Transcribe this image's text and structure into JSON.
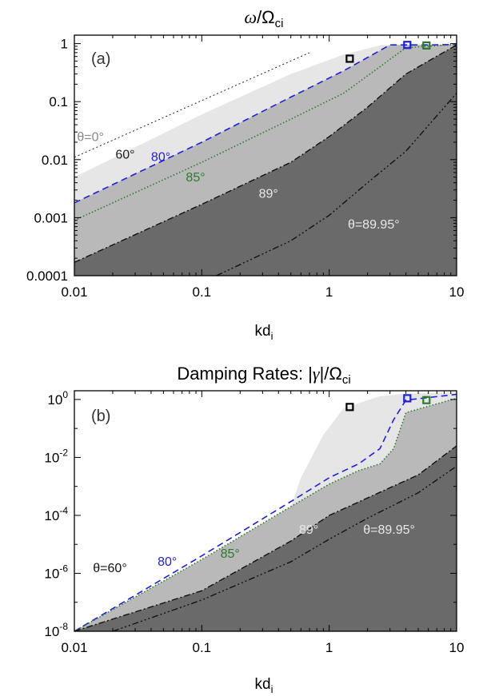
{
  "chart_data": [
    {
      "type": "area",
      "panel_label": "(a)",
      "title_symbol": "ω",
      "title_rest": "/Ω",
      "title_sub": "ci",
      "xlabel_main": "kd",
      "xlabel_sub": "i",
      "xscale": "log",
      "yscale": "log",
      "xlim": [
        0.01,
        10
      ],
      "ylim": [
        0.0001,
        1.4
      ],
      "xticks": [
        {
          "value": 0.01,
          "label": "0.01"
        },
        {
          "value": 0.1,
          "label": "0.1"
        },
        {
          "value": 1,
          "label": "1"
        },
        {
          "value": 10,
          "label": "10"
        }
      ],
      "yticks": [
        {
          "value": 1,
          "label": "1"
        },
        {
          "value": 0.1,
          "label": "0.1"
        },
        {
          "value": 0.01,
          "label": "0.01"
        },
        {
          "value": 0.001,
          "label": "0.001"
        },
        {
          "value": 0.0001,
          "label": "0.0001"
        }
      ],
      "regions": [
        {
          "fill": "#e6e6e6",
          "x": [
            0.01,
            0.1,
            0.5,
            1.3,
            2.6,
            10
          ],
          "y": [
            0.005,
            0.06,
            0.3,
            0.65,
            0.95,
            0.97
          ]
        },
        {
          "fill": "#b9b9b9",
          "x": [
            0.01,
            0.1,
            0.5,
            1.3,
            3.0,
            6.0,
            10
          ],
          "y": [
            0.0018,
            0.02,
            0.12,
            0.34,
            0.95,
            0.95,
            0.97
          ]
        },
        {
          "fill": "#6a6a6a",
          "x": [
            0.01,
            0.1,
            0.5,
            1.0,
            2.0,
            4.0,
            10
          ],
          "y": [
            0.00017,
            0.0017,
            0.009,
            0.025,
            0.08,
            0.3,
            0.95
          ]
        }
      ],
      "series": [
        {
          "color": "#222222",
          "dash": "2,3",
          "width": 1,
          "x": [
            0.01,
            0.7
          ],
          "y": [
            0.011,
            0.7
          ]
        },
        {
          "color": "#1f1fd6",
          "dash": "8,5",
          "width": 1.6,
          "x": [
            0.01,
            0.1,
            0.5,
            1.3,
            3.0,
            6.0,
            10
          ],
          "y": [
            0.0018,
            0.02,
            0.12,
            0.34,
            0.95,
            0.95,
            0.97
          ]
        },
        {
          "color": "#2e7a2e",
          "dash": "1.5,2.5",
          "width": 1.6,
          "x": [
            0.01,
            0.1,
            0.5,
            1.3,
            2.5,
            4.0,
            10
          ],
          "y": [
            0.0009,
            0.009,
            0.05,
            0.14,
            0.4,
            0.85,
            0.97
          ]
        },
        {
          "color": "#111111",
          "dash": "8,3,2,3",
          "width": 1.4,
          "x": [
            0.01,
            0.1,
            0.5,
            1.0,
            2.0,
            4.0,
            10
          ],
          "y": [
            0.00017,
            0.0017,
            0.009,
            0.025,
            0.08,
            0.3,
            0.95
          ]
        },
        {
          "color": "#111111",
          "dash": "8,3,2,3,2,3,2,3",
          "width": 1.4,
          "x": [
            0.13,
            0.5,
            1.0,
            2.0,
            4.0,
            10
          ],
          "y": [
            0.0001,
            0.0004,
            0.0011,
            0.004,
            0.014,
            0.14
          ]
        }
      ],
      "markers": [
        {
          "x": 1.45,
          "y": 0.55,
          "color": "#000000"
        },
        {
          "x": 4.1,
          "y": 0.95,
          "color": "#1f1fd6"
        },
        {
          "x": 5.8,
          "y": 0.93,
          "color": "#2e7a2e"
        }
      ],
      "annotations": [
        {
          "text": "θ=0°",
          "x": 0.0105,
          "y": 0.021,
          "color": "#888888"
        },
        {
          "text": "60°",
          "x": 0.021,
          "y": 0.0105,
          "color": "#222222"
        },
        {
          "text": "80°",
          "x": 0.04,
          "y": 0.0095,
          "color": "#1f1fd6"
        },
        {
          "text": "85°",
          "x": 0.075,
          "y": 0.0042,
          "color": "#2e7a2e"
        },
        {
          "text": "89°",
          "x": 0.28,
          "y": 0.0022,
          "color": "#e8e8e8"
        },
        {
          "text": "θ=89.95°",
          "x": 1.4,
          "y": 0.00065,
          "color": "#e8e8e8"
        }
      ]
    },
    {
      "type": "area",
      "panel_label": "(b)",
      "title_prefix": "Damping Rates: |",
      "title_symbol": "γ",
      "title_rest": "|/Ω",
      "title_sub": "ci",
      "xlabel_main": "kd",
      "xlabel_sub": "i",
      "xscale": "log",
      "yscale": "log",
      "xlim": [
        0.01,
        10
      ],
      "ylim": [
        1e-08,
        2
      ],
      "xticks": [
        {
          "value": 0.01,
          "label": "0.01"
        },
        {
          "value": 0.1,
          "label": "0.1"
        },
        {
          "value": 1,
          "label": "1"
        },
        {
          "value": 10,
          "label": "10"
        }
      ],
      "yticks": [
        {
          "value": 1,
          "base": "10",
          "exp": "0"
        },
        {
          "value": 0.01,
          "base": "10",
          "exp": "-2"
        },
        {
          "value": 0.0001,
          "base": "10",
          "exp": "-4"
        },
        {
          "value": 1e-06,
          "base": "10",
          "exp": "-6"
        },
        {
          "value": 1e-08,
          "base": "10",
          "exp": "-8"
        }
      ],
      "regions": [
        {
          "fill": "#e6e6e6",
          "x": [
            0.01,
            0.1,
            0.45,
            0.6,
            0.9,
            1.3,
            2.5,
            4.0,
            10
          ],
          "y": [
            1e-08,
            1e-06,
            5e-05,
            0.002,
            0.06,
            0.5,
            1.3,
            1.6,
            1.8
          ]
        },
        {
          "fill": "#b9b9b9",
          "x": [
            0.01,
            0.1,
            0.5,
            1.0,
            1.7,
            2.5,
            3.2,
            4.0,
            10
          ],
          "y": [
            1e-08,
            3e-06,
            0.0002,
            0.0012,
            0.0035,
            0.006,
            0.02,
            0.35,
            1.1
          ]
        },
        {
          "fill": "#6a6a6a",
          "x": [
            0.01,
            0.1,
            0.5,
            1.0,
            2.0,
            5.0,
            10
          ],
          "y": [
            1e-08,
            2.5e-07,
            1.3e-05,
            0.0001,
            0.0004,
            0.0025,
            0.025
          ]
        }
      ],
      "series": [
        {
          "color": "#1f1fd6",
          "dash": "8,5",
          "width": 1.6,
          "x": [
            0.01,
            0.1,
            0.5,
            1.0,
            1.7,
            2.5,
            3.2,
            4.0,
            10
          ],
          "y": [
            1e-08,
            4e-06,
            0.0003,
            0.002,
            0.006,
            0.02,
            0.2,
            0.95,
            1.5
          ]
        },
        {
          "color": "#2e7a2e",
          "dash": "1.5,2.5",
          "width": 1.6,
          "x": [
            0.01,
            0.1,
            0.5,
            1.0,
            1.7,
            2.5,
            3.2,
            4.0,
            10
          ],
          "y": [
            1e-08,
            3e-06,
            0.0002,
            0.0012,
            0.0035,
            0.006,
            0.02,
            0.35,
            1.1
          ]
        },
        {
          "color": "#111111",
          "dash": "8,3,2,3",
          "width": 1.4,
          "x": [
            0.01,
            0.1,
            0.5,
            1.0,
            2.0,
            5.0,
            10
          ],
          "y": [
            1e-08,
            2.5e-07,
            1.3e-05,
            0.0001,
            0.0004,
            0.0025,
            0.025
          ]
        },
        {
          "color": "#111111",
          "dash": "8,3,2,3,2,3,2,3",
          "width": 1.4,
          "x": [
            0.02,
            0.1,
            0.5,
            1.0,
            2.0,
            5.0,
            10
          ],
          "y": [
            1e-08,
            1.2e-07,
            2.5e-06,
            1.5e-05,
            8e-05,
            0.0006,
            0.005
          ]
        }
      ],
      "markers": [
        {
          "x": 1.45,
          "y": 0.55,
          "color": "#000000"
        },
        {
          "x": 4.1,
          "y": 1.1,
          "color": "#1f1fd6"
        },
        {
          "x": 5.8,
          "y": 0.95,
          "color": "#2e7a2e"
        }
      ],
      "annotations": [
        {
          "text": "θ=60°",
          "x": 0.014,
          "y": 1.1e-06,
          "color": "#111111"
        },
        {
          "text": "80°",
          "x": 0.045,
          "y": 1.8e-06,
          "color": "#1f1fd6"
        },
        {
          "text": "85°",
          "x": 0.14,
          "y": 3.5e-06,
          "color": "#2e7a2e"
        },
        {
          "text": "89°",
          "x": 0.58,
          "y": 2.3e-05,
          "color": "#e8e8e8"
        },
        {
          "text": "θ=89.95°",
          "x": 1.85,
          "y": 2.3e-05,
          "color": "#e8e8e8"
        }
      ]
    }
  ]
}
